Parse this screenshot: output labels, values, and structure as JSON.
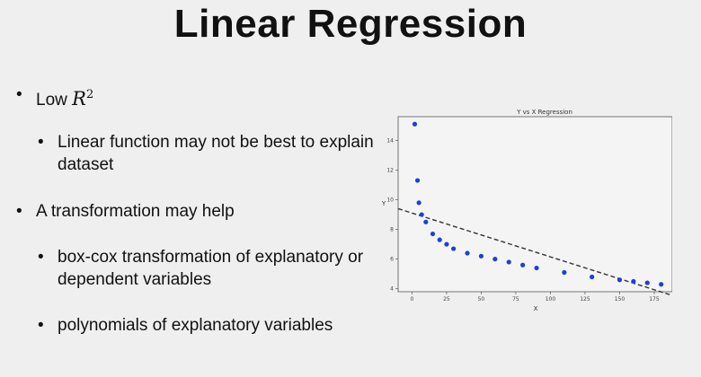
{
  "slide": {
    "title": "Linear Regression",
    "bullets": [
      {
        "text": "Low ",
        "math_var": "R",
        "math_exp": "2"
      },
      {
        "text": "Linear function may not be best to explain dataset"
      },
      {
        "text": "A transformation may help"
      },
      {
        "text": "box-cox transformation of explanatory or dependent variables"
      },
      {
        "text": "polynomials of explanatory variables"
      }
    ]
  },
  "chart_data": {
    "type": "scatter",
    "title": "Y vs X Regression",
    "xlabel": "X",
    "ylabel": "Y",
    "xlim": [
      -10,
      188
    ],
    "ylim": [
      3.8,
      15.6
    ],
    "xticks": [
      0,
      25,
      50,
      75,
      100,
      125,
      150,
      175
    ],
    "yticks": [
      4,
      6,
      8,
      10,
      12,
      14
    ],
    "grid": false,
    "point_color": "#1f3fd6",
    "points": [
      {
        "x": 2,
        "y": 15.1
      },
      {
        "x": 4,
        "y": 11.3
      },
      {
        "x": 5,
        "y": 9.8
      },
      {
        "x": 7,
        "y": 9.0
      },
      {
        "x": 10,
        "y": 8.5
      },
      {
        "x": 15,
        "y": 7.7
      },
      {
        "x": 20,
        "y": 7.3
      },
      {
        "x": 25,
        "y": 7.0
      },
      {
        "x": 30,
        "y": 6.7
      },
      {
        "x": 40,
        "y": 6.4
      },
      {
        "x": 50,
        "y": 6.2
      },
      {
        "x": 60,
        "y": 6.0
      },
      {
        "x": 70,
        "y": 5.8
      },
      {
        "x": 80,
        "y": 5.6
      },
      {
        "x": 90,
        "y": 5.4
      },
      {
        "x": 110,
        "y": 5.1
      },
      {
        "x": 130,
        "y": 4.8
      },
      {
        "x": 150,
        "y": 4.6
      },
      {
        "x": 160,
        "y": 4.5
      },
      {
        "x": 170,
        "y": 4.4
      },
      {
        "x": 180,
        "y": 4.3
      }
    ],
    "fit_line": {
      "style": "dashed",
      "color": "#333333",
      "x": [
        -10,
        188
      ],
      "y": [
        9.4,
        3.55
      ]
    }
  }
}
